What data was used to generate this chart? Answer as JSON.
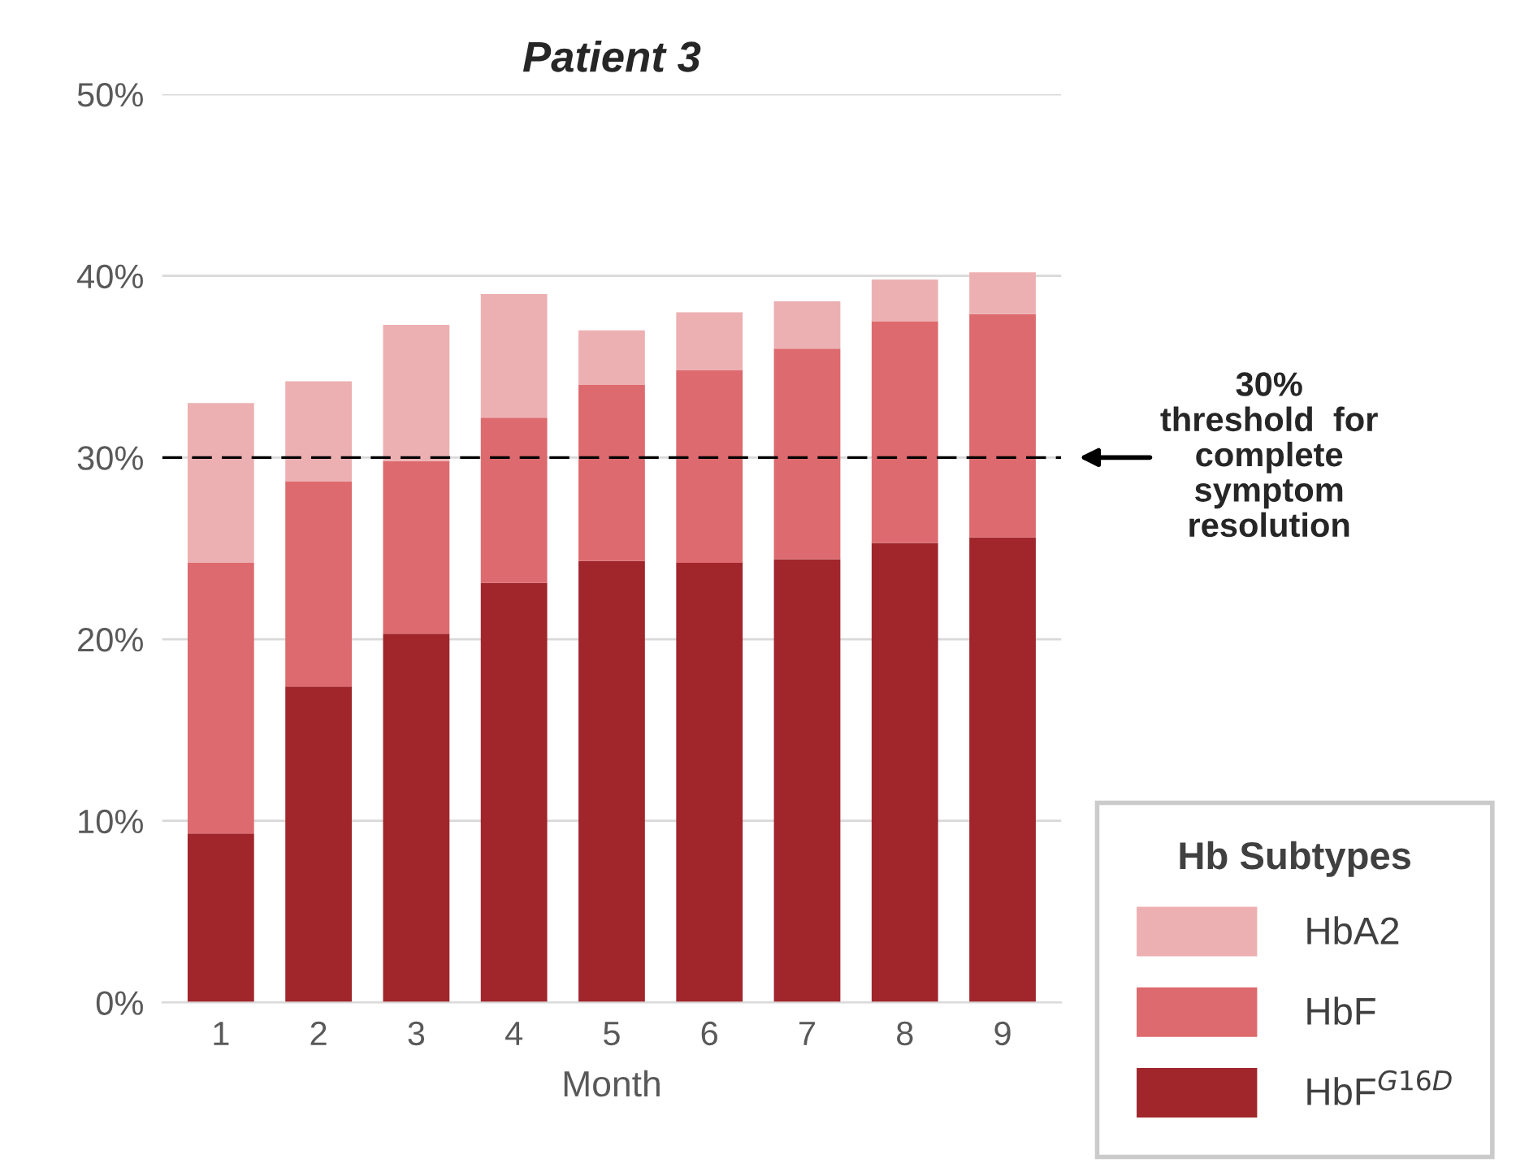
{
  "chart_data": {
    "type": "bar",
    "title": "Patient 3",
    "xlabel": "Month",
    "legend_title": "Hb Subtypes",
    "categories": [
      "1",
      "2",
      "3",
      "4",
      "5",
      "6",
      "7",
      "8",
      "9"
    ],
    "stacked": true,
    "series": [
      {
        "name": "HbF$^{G16D}$",
        "color": "#a0262c",
        "values": [
          9.3,
          17.4,
          20.3,
          23.1,
          24.3,
          24.2,
          24.4,
          25.3,
          25.6
        ]
      },
      {
        "name": "HbF",
        "color": "#dd6a6e",
        "values": [
          14.9,
          11.3,
          9.5,
          9.1,
          9.7,
          10.6,
          11.6,
          12.2,
          12.3
        ]
      },
      {
        "name": "HbA2",
        "color": "#edb0b2",
        "values": [
          8.8,
          5.5,
          7.5,
          6.8,
          3.0,
          3.2,
          2.6,
          2.3,
          2.3
        ]
      }
    ],
    "ylim": [
      0,
      50
    ],
    "yticks": [
      {
        "value": 0,
        "label": "0%"
      },
      {
        "value": 10,
        "label": "10%"
      },
      {
        "value": 20,
        "label": "20%"
      },
      {
        "value": 30,
        "label": "30%"
      },
      {
        "value": 40,
        "label": "40%"
      },
      {
        "value": 50,
        "label": "50%"
      }
    ],
    "grid": "y",
    "legend": "right",
    "ref_lines": [
      {
        "axis": "y",
        "value": 30,
        "label": "30%\nthreshold  for\ncomplete\nsymptom\nresolution",
        "color": "#000000",
        "line_style": "dashed"
      }
    ]
  }
}
